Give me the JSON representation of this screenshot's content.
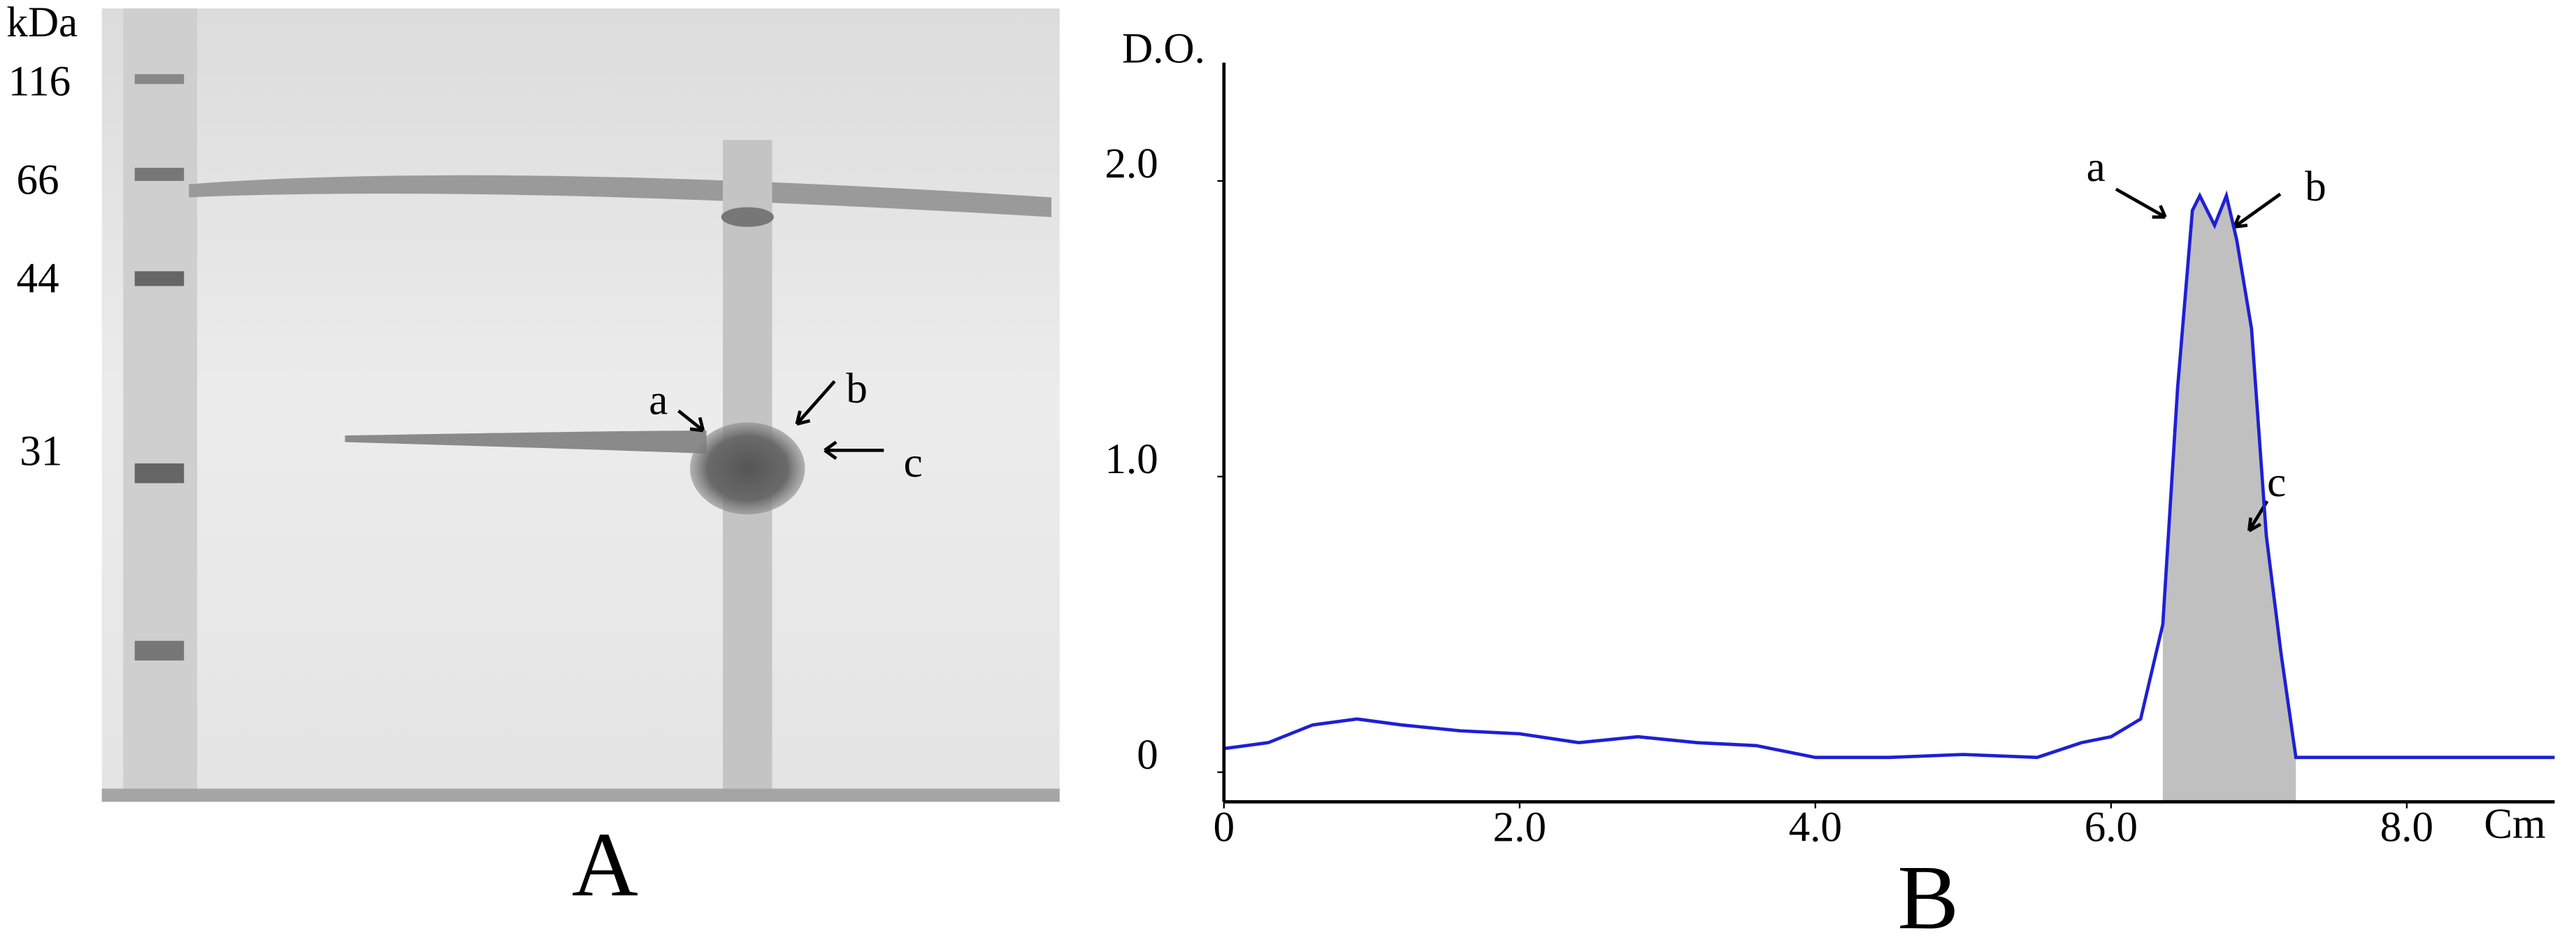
{
  "gel": {
    "axis_label": "kDa",
    "markers": [
      116,
      66,
      44,
      31
    ],
    "annotations": [
      "a",
      "b",
      "c"
    ],
    "panel_label": "A"
  },
  "chart_data": {
    "type": "line",
    "panel_label": "B",
    "xlabel": "Cm",
    "ylabel": "D.O.",
    "x": [
      0,
      0.3,
      0.6,
      0.9,
      1.2,
      1.6,
      2.0,
      2.4,
      2.8,
      3.2,
      3.6,
      4.0,
      4.5,
      5.0,
      5.5,
      5.8,
      6.0,
      6.2,
      6.35,
      6.45,
      6.55,
      6.6,
      6.7,
      6.78,
      6.85,
      6.95,
      7.05,
      7.15,
      7.25,
      7.5,
      9.0
    ],
    "series": [
      {
        "color": "#1f1fd6",
        "values": [
          0.08,
          0.1,
          0.16,
          0.18,
          0.16,
          0.14,
          0.13,
          0.1,
          0.12,
          0.1,
          0.09,
          0.05,
          0.05,
          0.06,
          0.05,
          0.1,
          0.12,
          0.18,
          0.5,
          1.3,
          1.9,
          1.95,
          1.85,
          1.95,
          1.8,
          1.5,
          0.8,
          0.4,
          0.05,
          0.05,
          0.05
        ]
      }
    ],
    "shade_range": [
      6.35,
      7.25
    ],
    "shade_color": "#c0c0c0",
    "xlim": [
      0,
      9
    ],
    "ylim": [
      -0.1,
      2.5
    ],
    "xticks": [
      0,
      {
        "value": 2,
        "label": "2.0"
      },
      {
        "value": 4,
        "label": "4.0"
      },
      {
        "value": 6,
        "label": "6.0"
      },
      {
        "value": 8,
        "label": "8.0"
      }
    ],
    "yticks": [
      0,
      {
        "value": 1,
        "label": "1.0"
      },
      {
        "value": 2,
        "label": "2.0"
      }
    ],
    "annotations": [
      "a",
      "b",
      "c"
    ]
  }
}
